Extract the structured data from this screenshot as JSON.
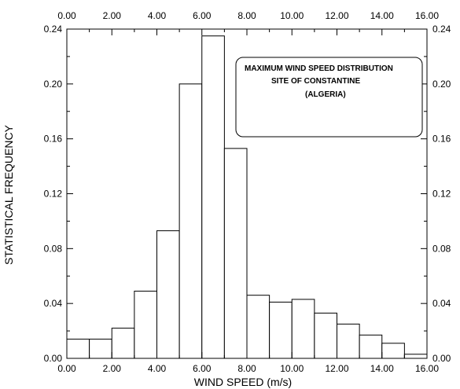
{
  "chart_data": {
    "type": "bar",
    "title": "",
    "xlabel": "WIND SPEED (m/s)",
    "ylabel": "STATISTICAL FREQUENCY",
    "xlim": [
      0,
      16
    ],
    "ylim": [
      0,
      0.24
    ],
    "bin_width": 1,
    "x_ticks": [
      "0.00",
      "2.00",
      "4.00",
      "6.00",
      "8.00",
      "10.00",
      "12.00",
      "14.00",
      "16.00"
    ],
    "y_ticks": [
      "0.00",
      "0.04",
      "0.08",
      "0.12",
      "0.16",
      "0.20",
      "0.24"
    ],
    "bins": [
      {
        "start": 0,
        "value": 0.014
      },
      {
        "start": 1,
        "value": 0.014
      },
      {
        "start": 2,
        "value": 0.022
      },
      {
        "start": 3,
        "value": 0.049
      },
      {
        "start": 4,
        "value": 0.093
      },
      {
        "start": 5,
        "value": 0.2
      },
      {
        "start": 6,
        "value": 0.235
      },
      {
        "start": 7,
        "value": 0.153
      },
      {
        "start": 8,
        "value": 0.046
      },
      {
        "start": 9,
        "value": 0.041
      },
      {
        "start": 10,
        "value": 0.043
      },
      {
        "start": 11,
        "value": 0.033
      },
      {
        "start": 12,
        "value": 0.025
      },
      {
        "start": 13,
        "value": 0.017
      },
      {
        "start": 14,
        "value": 0.011
      },
      {
        "start": 15,
        "value": 0.003
      }
    ],
    "annotation": {
      "lines": [
        "MAXIMUM WIND SPEED DISTRIBUTION",
        "SITE OF CONSTANTINE",
        "(ALGERIA)"
      ]
    },
    "grid": false,
    "mirrored_axes": true
  }
}
